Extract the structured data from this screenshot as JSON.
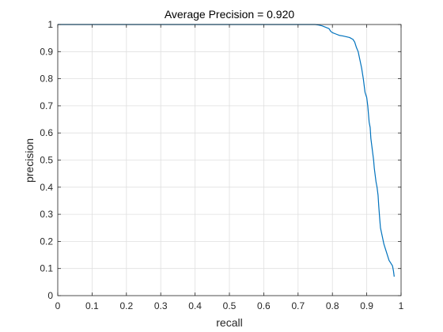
{
  "chart_data": {
    "type": "line",
    "title": "Average Precision = 0.920",
    "xlabel": "recall",
    "ylabel": "precision",
    "xlim": [
      0,
      1
    ],
    "ylim": [
      0,
      1
    ],
    "grid": true,
    "x_ticks": [
      "0",
      "0.1",
      "0.2",
      "0.3",
      "0.4",
      "0.5",
      "0.6",
      "0.7",
      "0.8",
      "0.9",
      "1"
    ],
    "y_ticks": [
      "0",
      "0.1",
      "0.2",
      "0.3",
      "0.4",
      "0.5",
      "0.6",
      "0.7",
      "0.8",
      "0.9",
      "1"
    ],
    "series": [
      {
        "color": "#0072BD",
        "x": [
          0.0,
          0.1,
          0.2,
          0.3,
          0.4,
          0.5,
          0.6,
          0.7,
          0.75,
          0.76,
          0.77,
          0.78,
          0.79,
          0.795,
          0.8,
          0.81,
          0.82,
          0.83,
          0.84,
          0.85,
          0.86,
          0.865,
          0.87,
          0.875,
          0.88,
          0.885,
          0.89,
          0.895,
          0.9,
          0.903,
          0.905,
          0.907,
          0.91,
          0.912,
          0.915,
          0.918,
          0.92,
          0.922,
          0.925,
          0.927,
          0.93,
          0.933,
          0.935,
          0.938,
          0.94,
          0.945,
          0.95,
          0.955,
          0.96,
          0.965,
          0.97,
          0.975,
          0.978,
          0.98
        ],
        "y": [
          1.0,
          1.0,
          1.0,
          1.0,
          1.0,
          1.0,
          1.0,
          1.0,
          1.0,
          0.998,
          0.995,
          0.99,
          0.985,
          0.975,
          0.97,
          0.965,
          0.96,
          0.958,
          0.955,
          0.952,
          0.945,
          0.935,
          0.915,
          0.9,
          0.87,
          0.84,
          0.8,
          0.75,
          0.73,
          0.7,
          0.67,
          0.64,
          0.62,
          0.58,
          0.55,
          0.52,
          0.5,
          0.47,
          0.44,
          0.42,
          0.4,
          0.37,
          0.33,
          0.28,
          0.25,
          0.22,
          0.19,
          0.17,
          0.15,
          0.13,
          0.12,
          0.11,
          0.09,
          0.07
        ]
      }
    ]
  }
}
